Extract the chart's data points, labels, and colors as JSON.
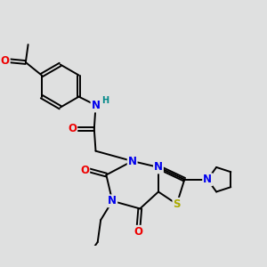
{
  "bg_color": "#dfe0e0",
  "bond_color": "#000000",
  "bond_width": 1.4,
  "atom_colors": {
    "N": "#0000ee",
    "O": "#ee0000",
    "S": "#aaaa00",
    "H": "#008888",
    "C": "#000000"
  },
  "font_size_atom": 8.5,
  "font_size_h": 7.0
}
